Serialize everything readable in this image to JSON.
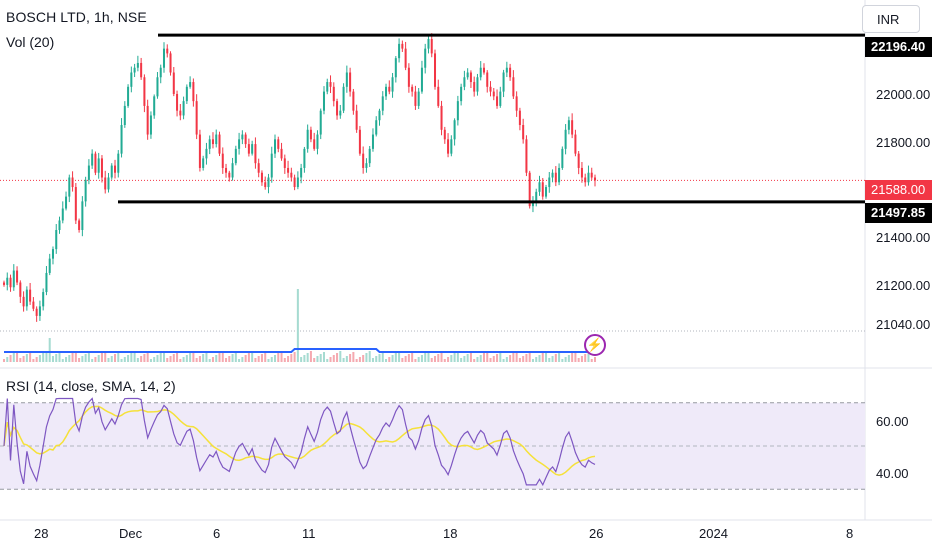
{
  "header": {
    "symbol_title": "BOSCH LTD, 1h, NSE",
    "volume_indicator": "Vol (20)",
    "rsi_indicator": "RSI (14, close, SMA, 14, 2)",
    "currency": "INR"
  },
  "price_axis": {
    "ticks": [
      "22000.00",
      "21800.00",
      "21400.00",
      "21200.00",
      "21040.00"
    ],
    "resistance_tag": "22196.40",
    "support_tag": "21497.85",
    "last_price_tag": "21588.00"
  },
  "rsi_axis": {
    "ticks": [
      "60.00",
      "40.00"
    ]
  },
  "time_axis": {
    "ticks": [
      "28",
      "Dec",
      "6",
      "11",
      "18",
      "26",
      "2024",
      "8"
    ]
  },
  "colors": {
    "up": "#22ab94",
    "down": "#f23645",
    "line": "#000000",
    "volume_ma": "#2962ff",
    "rsi_line": "#7e57c2",
    "rsi_sma": "#f5e13a",
    "rsi_band": "#efeaf9"
  },
  "icons": {
    "alert": "lightning-icon"
  },
  "chart_data": {
    "type": "candlestick",
    "title": "BOSCH LTD, 1h, NSE",
    "price_levels": {
      "resistance": 22196.4,
      "support": 21497.85,
      "last": 21588.0
    },
    "price_range": [
      20940,
      22260
    ],
    "x_ticks": [
      "28",
      "Dec",
      "6",
      "11",
      "18",
      "26",
      "2024",
      "8"
    ],
    "y_ticks": [
      21040,
      21200,
      21400,
      21800,
      22000
    ],
    "rsi": {
      "params": "14, close, SMA, 14, 2",
      "levels": [
        40,
        60
      ],
      "ticks": [
        40,
        60
      ],
      "range": [
        25,
        75
      ]
    },
    "closes": [
      21150,
      21180,
      21140,
      21210,
      21160,
      21100,
      21060,
      21130,
      21080,
      21050,
      21020,
      21060,
      21120,
      21200,
      21260,
      21300,
      21380,
      21420,
      21470,
      21520,
      21600,
      21560,
      21420,
      21380,
      21500,
      21590,
      21650,
      21700,
      21620,
      21680,
      21600,
      21550,
      21600,
      21650,
      21620,
      21700,
      21820,
      21900,
      21980,
      22040,
      22060,
      22080,
      22020,
      21900,
      21780,
      21860,
      21940,
      22020,
      22060,
      22140,
      22120,
      22040,
      21950,
      21880,
      21860,
      21920,
      21980,
      22000,
      21920,
      21780,
      21640,
      21680,
      21720,
      21760,
      21740,
      21780,
      21700,
      21640,
      21620,
      21600,
      21660,
      21720,
      21760,
      21780,
      21740,
      21700,
      21740,
      21660,
      21620,
      21580,
      21560,
      21600,
      21700,
      21760,
      21720,
      21680,
      21640,
      21620,
      21600,
      21560,
      21600,
      21640,
      21720,
      21800,
      21760,
      21720,
      21780,
      21880,
      21960,
      22000,
      21980,
      21920,
      21860,
      21880,
      21980,
      22040,
      21960,
      21880,
      21800,
      21700,
      21640,
      21660,
      21720,
      21780,
      21840,
      21880,
      21940,
      21980,
      21960,
      22020,
      22100,
      22160,
      22140,
      22060,
      21980,
      21960,
      21900,
      21960,
      22060,
      22140,
      22180,
      22120,
      21980,
      21900,
      21800,
      21760,
      21700,
      21760,
      21840,
      21920,
      21980,
      22020,
      22040,
      22000,
      21960,
      22020,
      22060,
      22040,
      21980,
      21960,
      21940,
      21900,
      21960,
      22040,
      22060,
      22020,
      21940,
      21880,
      21820,
      21760,
      21620,
      21480,
      21500,
      21540,
      21580,
      21520,
      21560,
      21600,
      21620,
      21580,
      21640,
      21720,
      21800,
      21840,
      21780,
      21700,
      21640,
      21600,
      21580,
      21620,
      21600,
      21588
    ]
  }
}
